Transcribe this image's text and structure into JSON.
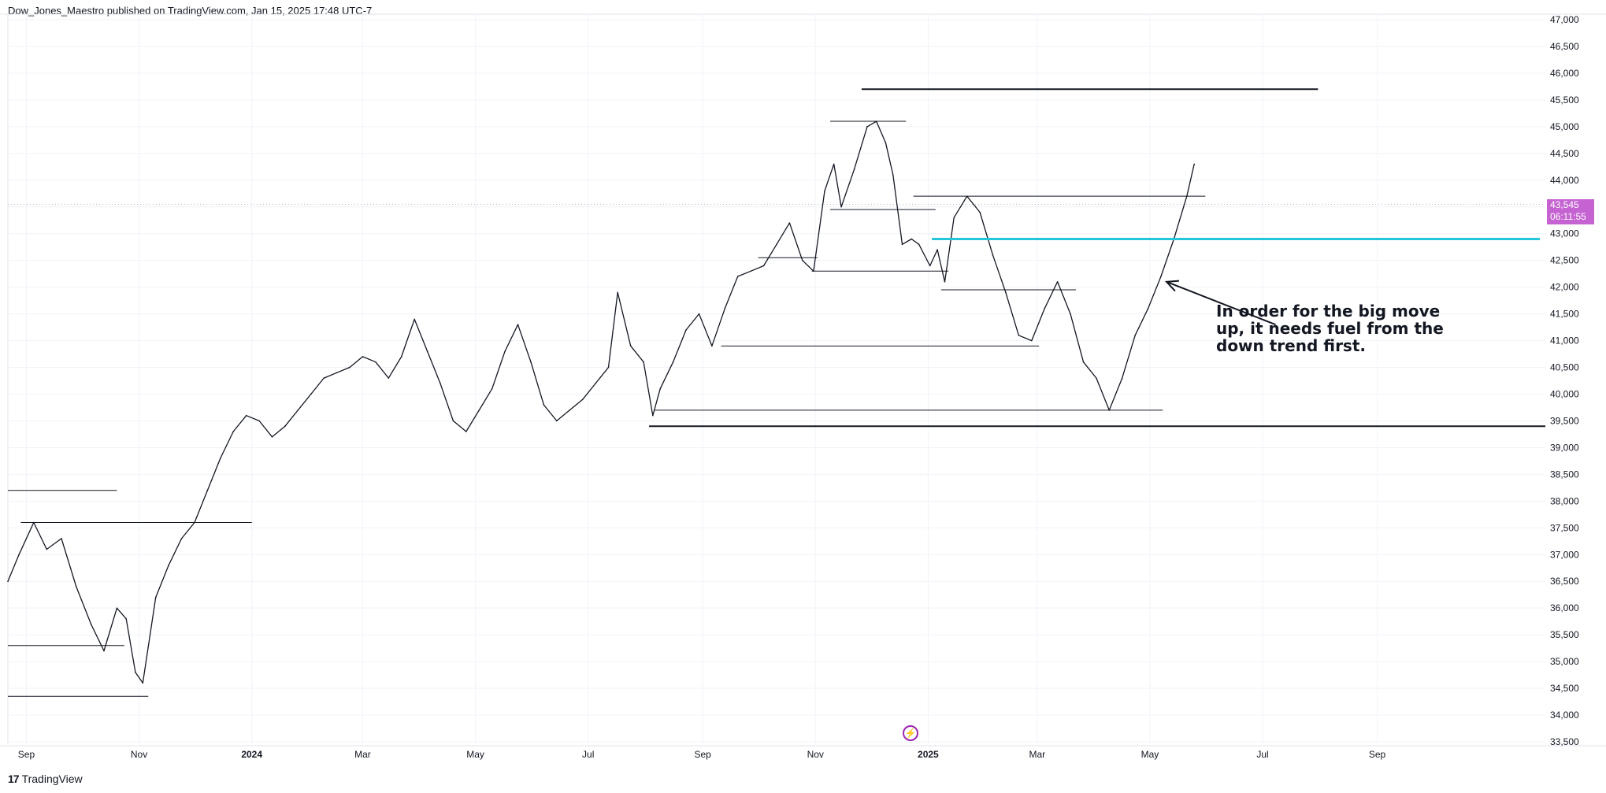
{
  "header": {
    "publisher": "Dow_Jones_Maestro published on TradingView.com, Jan 15, 2025 17:48 UTC-7"
  },
  "footer": {
    "brand": "TradingView",
    "logo_glyph": "17"
  },
  "price_badge": {
    "price": "43,545",
    "countdown": "06:11:55",
    "color": "#c463d1"
  },
  "annotation": {
    "text": "In order for the big move up, it needs fuel from the down trend first."
  },
  "events_icon": "lightning-icon",
  "chart_data": {
    "type": "line",
    "title": "",
    "xlabel": "",
    "ylabel": "",
    "y_axis_position": "right",
    "grid": true,
    "ylim": [
      33500,
      47000
    ],
    "y_ticks": [
      "33,500",
      "34,000",
      "34,500",
      "35,000",
      "35,500",
      "36,000",
      "36,500",
      "37,000",
      "37,500",
      "38,000",
      "38,500",
      "39,000",
      "39,500",
      "40,000",
      "40,500",
      "41,000",
      "41,500",
      "42,000",
      "42,500",
      "43,000",
      "43,500",
      "44,000",
      "44,500",
      "45,000",
      "45,500",
      "46,000",
      "46,500",
      "47,000"
    ],
    "x_ticks": [
      {
        "label": "Sep",
        "date": "2023-09-01",
        "bold": false
      },
      {
        "label": "Nov",
        "date": "2023-11-01",
        "bold": false
      },
      {
        "label": "2024",
        "date": "2024-01-01",
        "bold": true
      },
      {
        "label": "Mar",
        "date": "2024-03-01",
        "bold": false
      },
      {
        "label": "May",
        "date": "2024-05-01",
        "bold": false
      },
      {
        "label": "Jul",
        "date": "2024-07-01",
        "bold": false
      },
      {
        "label": "Sep",
        "date": "2024-09-01",
        "bold": false
      },
      {
        "label": "Nov",
        "date": "2024-11-01",
        "bold": false
      },
      {
        "label": "2025",
        "date": "2025-01-01",
        "bold": true
      },
      {
        "label": "Mar",
        "date": "2025-03-01",
        "bold": false
      },
      {
        "label": "May",
        "date": "2025-05-01",
        "bold": false
      },
      {
        "label": "Jul",
        "date": "2025-07-01",
        "bold": false
      },
      {
        "label": "Sep",
        "date": "2025-09-01",
        "bold": false
      }
    ],
    "xlim": [
      "2023-08-22",
      "2025-12-01"
    ],
    "series": [
      {
        "type": "price",
        "color": "#131722",
        "points": [
          [
            "2023-08-22",
            36500
          ],
          [
            "2023-08-28",
            37000
          ],
          [
            "2023-09-05",
            37600
          ],
          [
            "2023-09-12",
            37100
          ],
          [
            "2023-09-20",
            37300
          ],
          [
            "2023-09-28",
            36400
          ],
          [
            "2023-10-06",
            35700
          ],
          [
            "2023-10-13",
            35200
          ],
          [
            "2023-10-20",
            36000
          ],
          [
            "2023-10-25",
            35800
          ],
          [
            "2023-10-30",
            34800
          ],
          [
            "2023-11-03",
            34600
          ],
          [
            "2023-11-10",
            36200
          ],
          [
            "2023-11-17",
            36800
          ],
          [
            "2023-11-24",
            37300
          ],
          [
            "2023-12-01",
            37600
          ],
          [
            "2023-12-08",
            38200
          ],
          [
            "2023-12-15",
            38800
          ],
          [
            "2023-12-22",
            39300
          ],
          [
            "2023-12-29",
            39600
          ],
          [
            "2024-01-05",
            39500
          ],
          [
            "2024-01-12",
            39200
          ],
          [
            "2024-01-19",
            39400
          ],
          [
            "2024-01-26",
            39700
          ],
          [
            "2024-02-02",
            40000
          ],
          [
            "2024-02-09",
            40300
          ],
          [
            "2024-02-16",
            40400
          ],
          [
            "2024-02-23",
            40500
          ],
          [
            "2024-03-01",
            40700
          ],
          [
            "2024-03-08",
            40600
          ],
          [
            "2024-03-15",
            40300
          ],
          [
            "2024-03-22",
            40700
          ],
          [
            "2024-03-29",
            41400
          ],
          [
            "2024-04-05",
            40800
          ],
          [
            "2024-04-12",
            40200
          ],
          [
            "2024-04-19",
            39500
          ],
          [
            "2024-04-26",
            39300
          ],
          [
            "2024-05-03",
            39700
          ],
          [
            "2024-05-10",
            40100
          ],
          [
            "2024-05-17",
            40800
          ],
          [
            "2024-05-24",
            41300
          ],
          [
            "2024-05-31",
            40600
          ],
          [
            "2024-06-07",
            39800
          ],
          [
            "2024-06-14",
            39500
          ],
          [
            "2024-06-21",
            39700
          ],
          [
            "2024-06-28",
            39900
          ],
          [
            "2024-07-05",
            40200
          ],
          [
            "2024-07-12",
            40500
          ],
          [
            "2024-07-17",
            41900
          ],
          [
            "2024-07-24",
            40900
          ],
          [
            "2024-07-31",
            40600
          ],
          [
            "2024-08-05",
            39600
          ],
          [
            "2024-08-09",
            40100
          ],
          [
            "2024-08-16",
            40600
          ],
          [
            "2024-08-23",
            41200
          ],
          [
            "2024-08-30",
            41500
          ],
          [
            "2024-09-06",
            40900
          ],
          [
            "2024-09-13",
            41600
          ],
          [
            "2024-09-20",
            42200
          ],
          [
            "2024-09-27",
            42300
          ],
          [
            "2024-10-04",
            42400
          ],
          [
            "2024-10-11",
            42800
          ],
          [
            "2024-10-18",
            43200
          ],
          [
            "2024-10-25",
            42500
          ],
          [
            "2024-10-31",
            42300
          ],
          [
            "2024-11-06",
            43800
          ],
          [
            "2024-11-11",
            44300
          ],
          [
            "2024-11-15",
            43500
          ],
          [
            "2024-11-22",
            44200
          ],
          [
            "2024-11-29",
            45000
          ],
          [
            "2024-12-04",
            45100
          ],
          [
            "2024-12-09",
            44700
          ],
          [
            "2024-12-13",
            44100
          ],
          [
            "2024-12-18",
            42800
          ],
          [
            "2024-12-23",
            42900
          ],
          [
            "2024-12-27",
            42800
          ],
          [
            "2025-01-02",
            42400
          ],
          [
            "2025-01-06",
            42700
          ],
          [
            "2025-01-10",
            42100
          ],
          [
            "2025-01-15",
            43300
          ],
          [
            "2025-01-22",
            43700
          ],
          [
            "2025-01-29",
            43400
          ],
          [
            "2025-02-05",
            42600
          ],
          [
            "2025-02-12",
            41900
          ],
          [
            "2025-02-19",
            41100
          ],
          [
            "2025-02-26",
            41000
          ],
          [
            "2025-03-05",
            41600
          ],
          [
            "2025-03-12",
            42100
          ],
          [
            "2025-03-19",
            41500
          ],
          [
            "2025-03-26",
            40600
          ],
          [
            "2025-04-02",
            40300
          ],
          [
            "2025-04-09",
            39700
          ],
          [
            "2025-04-16",
            40300
          ],
          [
            "2025-04-23",
            41100
          ],
          [
            "2025-04-30",
            41600
          ],
          [
            "2025-05-07",
            42200
          ],
          [
            "2025-05-14",
            42900
          ],
          [
            "2025-05-21",
            43700
          ],
          [
            "2025-05-25",
            44300
          ]
        ]
      }
    ],
    "horizontal_levels": [
      {
        "price": 45700,
        "from": "2024-11-26",
        "to": "2025-07-31",
        "color": "#131722",
        "width": 2
      },
      {
        "price": 45100,
        "from": "2024-11-09",
        "to": "2024-12-20",
        "color": "#131722",
        "width": 1
      },
      {
        "price": 43700,
        "from": "2024-12-24",
        "to": "2025-05-31",
        "color": "#131722",
        "width": 1
      },
      {
        "price": 43450,
        "from": "2024-11-09",
        "to": "2025-01-05",
        "color": "#131722",
        "width": 1
      },
      {
        "price": 42900,
        "from": "2025-01-03",
        "to": "2025-11-28",
        "color": "#26c6da",
        "width": 3
      },
      {
        "price": 42550,
        "from": "2024-10-01",
        "to": "2024-11-02",
        "color": "#131722",
        "width": 1
      },
      {
        "price": 42300,
        "from": "2024-10-30",
        "to": "2025-01-12",
        "color": "#131722",
        "width": 1
      },
      {
        "price": 41950,
        "from": "2025-01-08",
        "to": "2025-03-22",
        "color": "#131722",
        "width": 1
      },
      {
        "price": 40900,
        "from": "2024-09-11",
        "to": "2025-03-02",
        "color": "#131722",
        "width": 1
      },
      {
        "price": 39700,
        "from": "2024-08-06",
        "to": "2025-05-08",
        "color": "#131722",
        "width": 1
      },
      {
        "price": 39400,
        "from": "2024-08-03",
        "to": "2025-12-01",
        "color": "#131722",
        "width": 2
      },
      {
        "price": 38200,
        "from": "2023-08-22",
        "to": "2023-10-20",
        "color": "#131722",
        "width": 1
      },
      {
        "price": 37600,
        "from": "2023-08-29",
        "to": "2024-01-01",
        "color": "#131722",
        "width": 1
      },
      {
        "price": 35300,
        "from": "2023-08-22",
        "to": "2023-10-24",
        "color": "#131722",
        "width": 1
      },
      {
        "price": 34350,
        "from": "2023-08-22",
        "to": "2023-11-06",
        "color": "#131722",
        "width": 1
      }
    ],
    "current_price_line": 43545,
    "arrow": {
      "from": [
        "2025-07-08",
        41300
      ],
      "to": [
        "2025-05-10",
        42100
      ]
    }
  }
}
